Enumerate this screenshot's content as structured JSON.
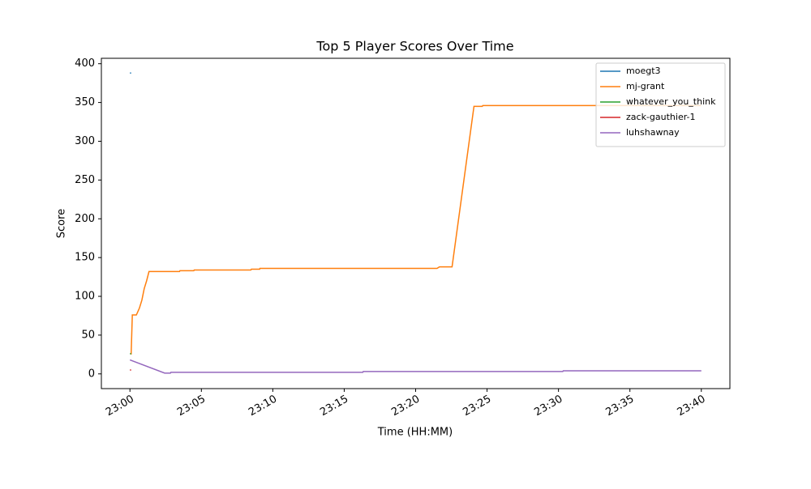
{
  "chart_data": {
    "type": "line",
    "title": "Top 5 Player Scores Over Time",
    "x_label": "Time (HH:MM)",
    "y_label": "Score",
    "xlim": [
      "22:58",
      "23:42"
    ],
    "xticks": [
      "23:00",
      "23:05",
      "23:10",
      "23:15",
      "23:20",
      "23:25",
      "23:30",
      "23:35",
      "23:40"
    ],
    "ylim": [
      -19,
      407
    ],
    "yticks": [
      0,
      50,
      100,
      150,
      200,
      250,
      300,
      350,
      400
    ],
    "legend": "upper right",
    "grid": false,
    "series": [
      {
        "name": "moegt3",
        "color": "#1f77b4",
        "x": [
          "23:00:00",
          "23:00:05"
        ],
        "values": [
          388,
          388
        ]
      },
      {
        "name": "mj-grant",
        "color": "#ff7f0e",
        "x": [
          "23:00:05",
          "23:00:10",
          "23:00:27",
          "23:00:40",
          "23:00:50",
          "23:01:00",
          "23:01:10",
          "23:01:20",
          "23:03:28",
          "23:03:30",
          "23:04:28",
          "23:04:30",
          "23:08:28",
          "23:08:30",
          "23:09:05",
          "23:09:06",
          "23:21:30",
          "23:21:40",
          "23:22:33",
          "23:24:05",
          "23:24:40",
          "23:24:42",
          "23:40:00"
        ],
        "values": [
          25,
          76,
          76,
          85,
          95,
          110,
          120,
          132,
          132,
          133,
          133,
          134,
          134,
          135,
          135,
          136,
          136,
          138,
          138,
          345,
          345,
          346,
          346
        ]
      },
      {
        "name": "whatever_you_think",
        "color": "#2ca02c",
        "x": [
          "23:00:00",
          "23:00:05"
        ],
        "values": [
          26,
          26
        ]
      },
      {
        "name": "zack-gauthier-1",
        "color": "#d62728",
        "x": [
          "23:00:00",
          "23:00:05"
        ],
        "values": [
          5,
          5
        ]
      },
      {
        "name": "luhshawnay",
        "color": "#9467bd",
        "x": [
          "23:00:00",
          "23:02:26",
          "23:02:50",
          "23:02:52",
          "23:16:18",
          "23:16:20",
          "23:30:18",
          "23:30:20",
          "23:40:00"
        ],
        "values": [
          18,
          1,
          1,
          2,
          2,
          3,
          3,
          4,
          4
        ]
      }
    ]
  }
}
